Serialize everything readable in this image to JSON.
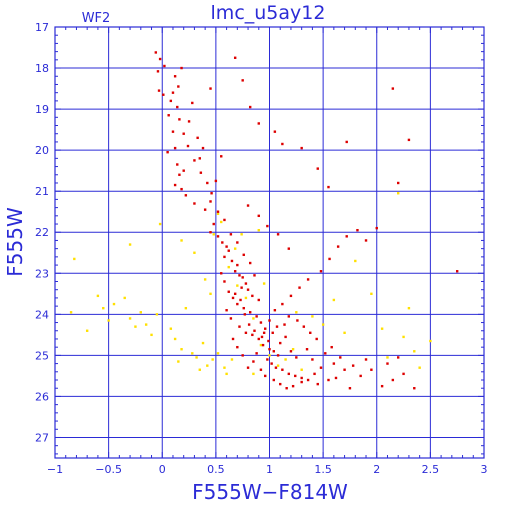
{
  "chart_data": {
    "type": "scatter",
    "title": "lmc_u5ay12",
    "panel_label": "WF2",
    "xlabel": "F555W−F814W",
    "ylabel": "F555W",
    "xlim": [
      -1,
      3
    ],
    "ylim": [
      27.5,
      17
    ],
    "y_inverted": true,
    "xticks": [
      -1,
      -0.5,
      0,
      0.5,
      1,
      1.5,
      2,
      2.5,
      3
    ],
    "xtick_labels": [
      "−1",
      "−0.5",
      "0",
      "0.5",
      "1",
      "1.5",
      "2",
      "2.5",
      "3"
    ],
    "yticks": [
      17,
      18,
      19,
      20,
      21,
      22,
      23,
      24,
      25,
      26,
      27
    ],
    "ytick_labels": [
      "17",
      "18",
      "19",
      "20",
      "21",
      "22",
      "23",
      "24",
      "25",
      "26",
      "27"
    ],
    "grid": true,
    "colors": {
      "frame": "#2b2bd6",
      "grid": "#2b2bd6",
      "series_main": "#dd0000",
      "series_faint": "#ffe000"
    },
    "series": [
      {
        "color": "#dd0000",
        "points": [
          [
            -0.06,
            17.62
          ],
          [
            -0.02,
            17.78
          ],
          [
            -0.04,
            18.08
          ],
          [
            0.02,
            17.95
          ],
          [
            -0.03,
            18.55
          ],
          [
            0.01,
            18.65
          ],
          [
            0.08,
            18.8
          ],
          [
            0.12,
            18.2
          ],
          [
            0.15,
            18.45
          ],
          [
            0.18,
            18.0
          ],
          [
            0.28,
            18.85
          ],
          [
            0.06,
            19.15
          ],
          [
            0.1,
            19.55
          ],
          [
            0.12,
            19.95
          ],
          [
            0.05,
            20.05
          ],
          [
            0.14,
            20.35
          ],
          [
            0.16,
            20.6
          ],
          [
            0.2,
            20.5
          ],
          [
            0.25,
            19.3
          ],
          [
            0.33,
            19.7
          ],
          [
            0.35,
            20.2
          ],
          [
            0.38,
            19.95
          ],
          [
            0.12,
            20.85
          ],
          [
            0.18,
            20.95
          ],
          [
            0.22,
            21.1
          ],
          [
            0.3,
            21.3
          ],
          [
            0.4,
            21.45
          ],
          [
            0.45,
            21.25
          ],
          [
            0.5,
            20.75
          ],
          [
            0.55,
            20.15
          ],
          [
            0.45,
            18.5
          ],
          [
            0.68,
            17.75
          ],
          [
            0.75,
            18.3
          ],
          [
            0.82,
            18.95
          ],
          [
            0.9,
            19.35
          ],
          [
            1.05,
            19.55
          ],
          [
            1.12,
            19.85
          ],
          [
            1.3,
            19.95
          ],
          [
            1.45,
            20.45
          ],
          [
            1.55,
            20.9
          ],
          [
            1.72,
            19.8
          ],
          [
            2.15,
            18.5
          ],
          [
            2.2,
            20.8
          ],
          [
            2.3,
            19.75
          ],
          [
            0.45,
            22.0
          ],
          [
            0.48,
            21.8
          ],
          [
            0.52,
            22.1
          ],
          [
            0.56,
            22.25
          ],
          [
            0.6,
            22.35
          ],
          [
            0.62,
            22.45
          ],
          [
            0.58,
            22.6
          ],
          [
            0.65,
            22.7
          ],
          [
            0.7,
            22.8
          ],
          [
            0.68,
            22.95
          ],
          [
            0.72,
            23.05
          ],
          [
            0.75,
            23.1
          ],
          [
            0.78,
            23.25
          ],
          [
            0.74,
            23.35
          ],
          [
            0.8,
            23.4
          ],
          [
            0.84,
            23.55
          ],
          [
            0.62,
            23.45
          ],
          [
            0.66,
            23.6
          ],
          [
            0.7,
            23.75
          ],
          [
            0.76,
            23.85
          ],
          [
            0.82,
            23.95
          ],
          [
            0.88,
            24.05
          ],
          [
            0.92,
            24.2
          ],
          [
            0.96,
            24.35
          ],
          [
            0.72,
            24.3
          ],
          [
            0.78,
            24.45
          ],
          [
            0.84,
            24.5
          ],
          [
            0.9,
            24.6
          ],
          [
            0.94,
            24.75
          ],
          [
            1.0,
            24.85
          ],
          [
            1.04,
            24.9
          ],
          [
            1.08,
            25.0
          ],
          [
            1.1,
            24.7
          ],
          [
            1.15,
            24.55
          ],
          [
            1.2,
            24.9
          ],
          [
            1.25,
            25.05
          ],
          [
            0.98,
            25.1
          ],
          [
            1.02,
            25.2
          ],
          [
            1.06,
            25.3
          ],
          [
            1.12,
            25.35
          ],
          [
            1.18,
            25.45
          ],
          [
            1.24,
            25.5
          ],
          [
            1.3,
            25.55
          ],
          [
            1.36,
            25.6
          ],
          [
            1.42,
            25.45
          ],
          [
            1.48,
            25.3
          ],
          [
            0.85,
            25.15
          ],
          [
            0.92,
            25.35
          ],
          [
            0.96,
            25.5
          ],
          [
            1.04,
            25.6
          ],
          [
            1.1,
            25.7
          ],
          [
            1.16,
            25.8
          ],
          [
            1.22,
            25.75
          ],
          [
            1.3,
            25.65
          ],
          [
            1.45,
            25.7
          ],
          [
            1.55,
            25.6
          ],
          [
            1.6,
            25.2
          ],
          [
            1.66,
            25.05
          ],
          [
            1.7,
            25.35
          ],
          [
            1.75,
            25.8
          ],
          [
            1.85,
            25.5
          ],
          [
            1.95,
            25.35
          ],
          [
            2.05,
            25.75
          ],
          [
            2.15,
            25.6
          ],
          [
            2.25,
            25.45
          ],
          [
            2.35,
            25.8
          ],
          [
            1.05,
            23.9
          ],
          [
            1.12,
            23.75
          ],
          [
            1.18,
            24.05
          ],
          [
            1.26,
            24.15
          ],
          [
            1.32,
            24.3
          ],
          [
            1.38,
            24.45
          ],
          [
            1.44,
            24.6
          ],
          [
            1.2,
            23.55
          ],
          [
            1.28,
            23.35
          ],
          [
            1.36,
            23.15
          ],
          [
            1.48,
            22.95
          ],
          [
            1.56,
            22.65
          ],
          [
            1.64,
            22.35
          ],
          [
            1.72,
            22.1
          ],
          [
            1.82,
            21.95
          ],
          [
            1.9,
            22.2
          ],
          [
            2.0,
            21.9
          ],
          [
            0.8,
            21.35
          ],
          [
            0.9,
            21.6
          ],
          [
            0.98,
            21.85
          ],
          [
            1.08,
            22.05
          ],
          [
            1.18,
            22.4
          ],
          [
            0.55,
            23.0
          ],
          [
            0.58,
            23.2
          ],
          [
            0.6,
            23.9
          ],
          [
            0.64,
            24.1
          ],
          [
            0.66,
            24.6
          ],
          [
            0.7,
            24.8
          ],
          [
            0.75,
            25.0
          ],
          [
            0.8,
            25.3
          ],
          [
            0.88,
            24.95
          ],
          [
            0.95,
            24.45
          ],
          [
            1.0,
            24.15
          ],
          [
            0.9,
            23.65
          ],
          [
            0.86,
            23.05
          ],
          [
            0.82,
            22.75
          ],
          [
            0.76,
            22.55
          ],
          [
            0.7,
            22.25
          ],
          [
            0.64,
            22.05
          ],
          [
            0.58,
            21.7
          ],
          [
            0.52,
            21.5
          ],
          [
            0.46,
            21.05
          ],
          [
            0.42,
            20.8
          ],
          [
            0.36,
            20.55
          ],
          [
            0.3,
            20.25
          ],
          [
            0.24,
            19.9
          ],
          [
            0.2,
            19.6
          ],
          [
            0.16,
            19.25
          ],
          [
            0.14,
            18.95
          ],
          [
            0.1,
            18.6
          ],
          [
            1.35,
            24.85
          ],
          [
            1.4,
            25.1
          ],
          [
            1.52,
            24.95
          ],
          [
            1.58,
            24.8
          ],
          [
            1.62,
            25.55
          ],
          [
            1.78,
            25.25
          ],
          [
            1.9,
            25.1
          ],
          [
            2.1,
            25.2
          ],
          [
            2.2,
            25.05
          ],
          [
            2.75,
            22.95
          ],
          [
            0.68,
            23.5
          ],
          [
            0.73,
            23.65
          ],
          [
            0.77,
            24.0
          ],
          [
            0.81,
            24.25
          ],
          [
            0.86,
            24.4
          ],
          [
            0.93,
            24.55
          ],
          [
            0.99,
            24.65
          ],
          [
            1.03,
            24.45
          ],
          [
            1.07,
            24.3
          ],
          [
            1.14,
            24.25
          ]
        ]
      },
      {
        "color": "#ffe000",
        "points": [
          [
            -0.82,
            22.65
          ],
          [
            -0.85,
            23.95
          ],
          [
            -0.6,
            23.55
          ],
          [
            -0.55,
            23.85
          ],
          [
            -0.5,
            24.15
          ],
          [
            -0.45,
            23.75
          ],
          [
            -0.35,
            23.6
          ],
          [
            -0.3,
            24.1
          ],
          [
            -0.25,
            24.3
          ],
          [
            -0.2,
            23.95
          ],
          [
            -0.15,
            24.25
          ],
          [
            -0.1,
            24.5
          ],
          [
            -0.05,
            24.0
          ],
          [
            0.08,
            24.35
          ],
          [
            0.12,
            24.6
          ],
          [
            0.18,
            24.85
          ],
          [
            0.22,
            23.85
          ],
          [
            0.28,
            24.95
          ],
          [
            0.32,
            25.05
          ],
          [
            0.38,
            24.7
          ],
          [
            0.42,
            25.25
          ],
          [
            0.47,
            25.1
          ],
          [
            0.52,
            24.95
          ],
          [
            0.58,
            25.3
          ],
          [
            0.6,
            25.45
          ],
          [
            -0.02,
            21.8
          ],
          [
            0.18,
            22.2
          ],
          [
            0.3,
            22.5
          ],
          [
            0.4,
            23.15
          ],
          [
            0.45,
            23.5
          ],
          [
            0.62,
            22.85
          ],
          [
            0.7,
            23.3
          ],
          [
            0.78,
            23.6
          ],
          [
            0.85,
            24.1
          ],
          [
            0.92,
            24.75
          ],
          [
            1.0,
            25.0
          ],
          [
            1.08,
            25.25
          ],
          [
            1.15,
            25.1
          ],
          [
            1.22,
            24.85
          ],
          [
            1.3,
            25.35
          ],
          [
            1.5,
            24.25
          ],
          [
            1.6,
            23.65
          ],
          [
            1.8,
            22.7
          ],
          [
            1.95,
            23.5
          ],
          [
            2.05,
            24.35
          ],
          [
            2.1,
            25.05
          ],
          [
            2.25,
            24.55
          ],
          [
            2.35,
            24.9
          ],
          [
            2.4,
            25.3
          ],
          [
            2.5,
            24.65
          ],
          [
            2.3,
            23.85
          ],
          [
            2.2,
            21.05
          ],
          [
            0.52,
            21.55
          ],
          [
            0.55,
            21.75
          ],
          [
            0.48,
            22.05
          ],
          [
            0.68,
            22.4
          ],
          [
            0.74,
            22.05
          ],
          [
            0.9,
            21.95
          ],
          [
            -0.3,
            22.3
          ],
          [
            -0.7,
            24.4
          ],
          [
            0.95,
            23.25
          ],
          [
            1.25,
            23.95
          ],
          [
            1.4,
            24.05
          ],
          [
            1.7,
            24.45
          ],
          [
            0.85,
            25.45
          ],
          [
            0.65,
            25.1
          ],
          [
            0.35,
            25.35
          ],
          [
            0.15,
            25.15
          ]
        ]
      }
    ]
  }
}
